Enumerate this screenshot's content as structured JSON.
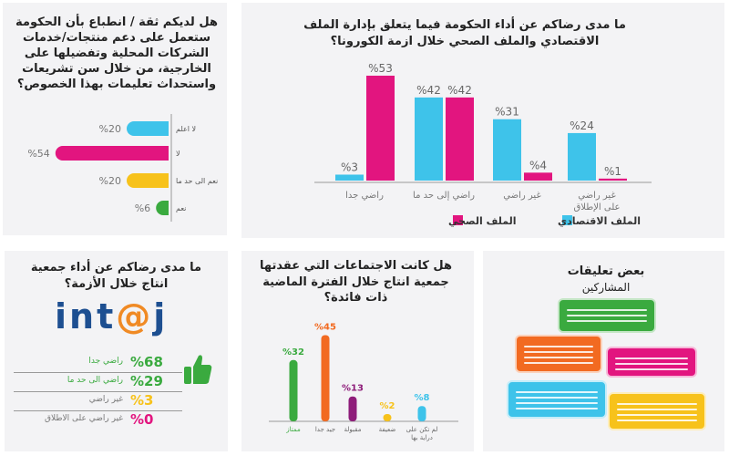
{
  "colors": {
    "cyan": "#3ec3ea",
    "pink": "#e2157f",
    "yellow": "#f7c21b",
    "green": "#3aaa3f",
    "orange": "#f26a21",
    "purple": "#8e1d7a",
    "navy": "#1d4f91",
    "logo_orange": "#f08a24"
  },
  "chart_data": [
    {
      "type": "bar",
      "title": "ما مدى رضاكم عن أداء الحكومة فيما يتعلق بإدارة الملف الاقتصادي والملف الصحي  خلال ازمة الكورونا؟",
      "categories": [
        "راضي جدا",
        "راضي إلى حد ما",
        "غير راضي",
        "غير راضي على الإطلاق"
      ],
      "series": [
        {
          "name": "الملف الاقتصادي",
          "color": "#3ec3ea",
          "values": [
            3,
            42,
            31,
            24
          ]
        },
        {
          "name": "الملف الصحي",
          "color": "#e2157f",
          "values": [
            53,
            42,
            4,
            1
          ]
        }
      ],
      "value_labels": {
        "s0": [
          "%3",
          "%42",
          "%31",
          "%24"
        ],
        "s1": [
          "%53",
          "%42",
          "%4",
          "%1"
        ]
      },
      "legend": "bottom",
      "grid": false,
      "ylim": [
        0,
        60
      ]
    },
    {
      "type": "bar",
      "orientation": "horizontal",
      "title": "هل لديكم ثقة / انطباع بأن الحكومة ستعمل على دعم منتجات/خدمات الشركات المحلية وتفضيلها على الخارجية، من خلال سن تشريعات واستحداث تعليمات بهذا الخصوص؟",
      "categories": [
        "لا اعلم",
        "لا",
        "نعم الى حد ما",
        "نعم"
      ],
      "values": [
        20,
        54,
        20,
        6
      ],
      "value_labels": [
        "%20",
        "%54",
        "%20",
        "%6"
      ],
      "colors": [
        "#3ec3ea",
        "#e2157f",
        "#f7c21b",
        "#3aaa3f"
      ],
      "grid": false,
      "xlim": [
        0,
        60
      ]
    },
    {
      "type": "bar",
      "title": "هل كانت الاجتماعات التي عقدتها جمعية انتاج خلال الفترة الماضية ذات فائدة؟",
      "categories": [
        "ممتاز",
        "جيد جدا",
        "مقبولة",
        "ضعيفة",
        "لم تكن على دراية بها"
      ],
      "values": [
        32,
        45,
        13,
        2,
        8
      ],
      "value_labels": [
        "%32",
        "%45",
        "%13",
        "%2",
        "%8"
      ],
      "colors": [
        "#3aaa3f",
        "#f26a21",
        "#8e1d7a",
        "#f7c21b",
        "#3ec3ea"
      ],
      "grid": false,
      "ylim": [
        0,
        50
      ]
    }
  ],
  "intaj": {
    "title": "ما مدى رضاكم عن أداء جمعية انتاج خلال الأزمة؟",
    "logo": "int@j",
    "rows": [
      {
        "pct": "%68",
        "label": "راضي جدا",
        "color": "#3aaa3f"
      },
      {
        "pct": "%29",
        "label": "راضي الى حد ما",
        "color": "#3aaa3f"
      },
      {
        "pct": "%3",
        "label": "غير راضي",
        "color": "#f7c21b"
      },
      {
        "pct": "%0",
        "label": "غير راضي على الاطلاق",
        "color": "#e2157f"
      }
    ]
  },
  "comments": {
    "title": "بعض تعليقات",
    "subtitle": "المشاركين"
  }
}
